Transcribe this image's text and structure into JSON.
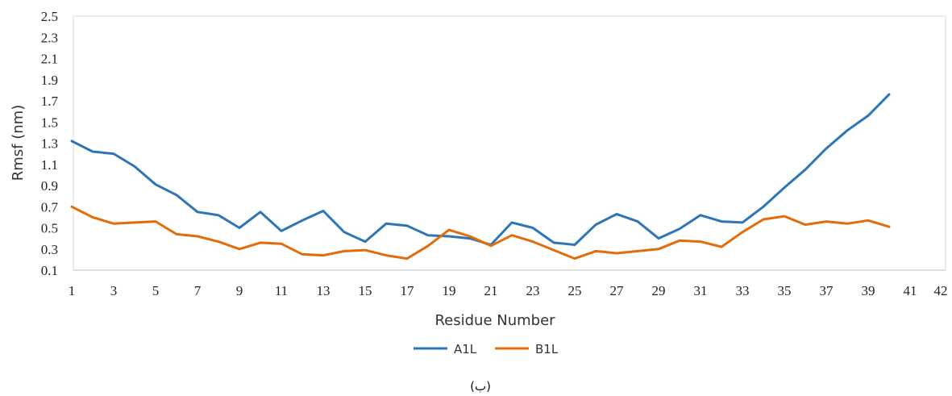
{
  "chart_data": {
    "type": "line",
    "xlabel": "Residue Number",
    "ylabel": "Rmsf (nm)",
    "ylim": [
      0.1,
      2.5
    ],
    "yticks": [
      "0.1",
      "0.3",
      "0.5",
      "0.7",
      "0.9",
      "1.1",
      "1.3",
      "1.5",
      "1.7",
      "1.9",
      "2.1",
      "2.3",
      "2.5"
    ],
    "xticks": [
      "1",
      "3",
      "5",
      "7",
      "9",
      "11",
      "13",
      "15",
      "17",
      "19",
      "21",
      "23",
      "25",
      "27",
      "29",
      "31",
      "33",
      "35",
      "37",
      "39",
      "41",
      "42"
    ],
    "grid": false,
    "legend_position": "bottom",
    "caption": "(ب)",
    "x": [
      1,
      2,
      3,
      4,
      5,
      6,
      7,
      8,
      9,
      10,
      11,
      12,
      13,
      14,
      15,
      16,
      17,
      18,
      19,
      20,
      21,
      22,
      23,
      24,
      25,
      26,
      27,
      28,
      29,
      30,
      31,
      32,
      33,
      34,
      35,
      36,
      37,
      38,
      39,
      40
    ],
    "series": [
      {
        "name": "A1L",
        "color": "#2E75B6",
        "values": [
          1.32,
          1.22,
          1.2,
          1.08,
          0.91,
          0.81,
          0.65,
          0.62,
          0.5,
          0.65,
          0.47,
          0.57,
          0.66,
          0.46,
          0.37,
          0.54,
          0.52,
          0.43,
          0.42,
          0.4,
          0.34,
          0.55,
          0.5,
          0.36,
          0.34,
          0.53,
          0.63,
          0.56,
          0.4,
          0.49,
          0.62,
          0.56,
          0.55,
          0.7,
          0.88,
          1.05,
          1.25,
          1.42,
          1.56,
          1.76
        ]
      },
      {
        "name": "B1L",
        "color": "#E36C0A",
        "values": [
          0.7,
          0.6,
          0.54,
          0.55,
          0.56,
          0.44,
          0.42,
          0.37,
          0.3,
          0.36,
          0.35,
          0.25,
          0.24,
          0.28,
          0.29,
          0.24,
          0.21,
          0.33,
          0.48,
          0.42,
          0.33,
          0.43,
          0.37,
          0.29,
          0.21,
          0.28,
          0.26,
          0.28,
          0.3,
          0.38,
          0.37,
          0.32,
          0.46,
          0.58,
          0.61,
          0.53,
          0.56,
          0.54,
          0.57,
          0.51
        ]
      }
    ]
  }
}
